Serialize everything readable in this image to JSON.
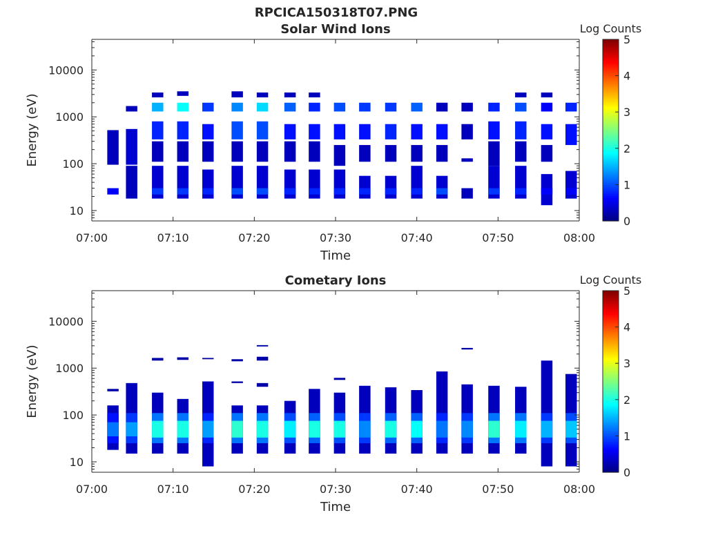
{
  "figure_title": "RPCICA150318T07.PNG",
  "colormap": [
    "#00007f",
    "#0000ff",
    "#007fff",
    "#00ffff",
    "#7fff7f",
    "#ffff00",
    "#ff7f00",
    "#ff0000",
    "#7f0000"
  ],
  "chart_data": [
    {
      "type": "heatmap",
      "title": "Solar Wind Ions",
      "xlabel": "Time",
      "ylabel": "Energy (eV)",
      "yscale": "log",
      "ylim": [
        6,
        45000
      ],
      "xlim": [
        "07:00",
        "08:00"
      ],
      "x_ticks": [
        "07:00",
        "07:10",
        "07:20",
        "07:30",
        "07:40",
        "07:50",
        "08:00"
      ],
      "y_ticks": [
        "10",
        "100",
        "1000",
        "10000"
      ],
      "y_tick_values": [
        10,
        100,
        1000,
        10000
      ],
      "colorbar": {
        "label": "Log Counts",
        "range": [
          0,
          5
        ],
        "ticks": [
          "0",
          "1",
          "2",
          "3",
          "4",
          "5"
        ]
      },
      "time_bins": [
        2.6,
        4.9,
        8.1,
        11.2,
        14.3,
        17.9,
        21.0,
        24.4,
        27.4,
        30.5,
        33.6,
        36.8,
        40.0,
        43.1,
        46.2,
        49.5,
        52.8,
        56.0,
        59.0
      ],
      "bin_width_min": 1.4,
      "cells": [
        {
          "t": 2.6,
          "ranges": [
            [
              22,
              30,
              0.6
            ],
            [
              95,
              520,
              0.3
            ]
          ]
        },
        {
          "t": 4.9,
          "ranges": [
            [
              18,
              90,
              0.3
            ],
            [
              95,
              550,
              0.4
            ],
            [
              1300,
              1700,
              0.3
            ]
          ]
        },
        {
          "t": 8.1,
          "ranges": [
            [
              18,
              90,
              0.4
            ],
            [
              22,
              30,
              0.9
            ],
            [
              110,
              300,
              0.3
            ],
            [
              330,
              800,
              0.8
            ],
            [
              1300,
              2000,
              1.5
            ],
            [
              2600,
              3300,
              0.3
            ]
          ]
        },
        {
          "t": 11.2,
          "ranges": [
            [
              18,
              90,
              0.4
            ],
            [
              22,
              30,
              0.9
            ],
            [
              110,
              300,
              0.3
            ],
            [
              330,
              800,
              0.8
            ],
            [
              1300,
              2000,
              1.9
            ],
            [
              2800,
              3500,
              0.3
            ]
          ]
        },
        {
          "t": 14.3,
          "ranges": [
            [
              18,
              75,
              0.4
            ],
            [
              22,
              30,
              0.8
            ],
            [
              110,
              300,
              0.3
            ],
            [
              330,
              700,
              0.7
            ],
            [
              1300,
              2000,
              0.9
            ]
          ]
        },
        {
          "t": 17.9,
          "ranges": [
            [
              18,
              90,
              0.4
            ],
            [
              22,
              30,
              1.0
            ],
            [
              110,
              300,
              0.3
            ],
            [
              330,
              800,
              1.0
            ],
            [
              1300,
              2000,
              1.3
            ],
            [
              2600,
              3500,
              0.3
            ]
          ]
        },
        {
          "t": 21.0,
          "ranges": [
            [
              18,
              90,
              0.4
            ],
            [
              22,
              30,
              1.0
            ],
            [
              110,
              300,
              0.3
            ],
            [
              330,
              800,
              1.0
            ],
            [
              1300,
              2000,
              1.7
            ],
            [
              2600,
              3300,
              0.3
            ]
          ]
        },
        {
          "t": 24.4,
          "ranges": [
            [
              18,
              75,
              0.4
            ],
            [
              22,
              30,
              0.8
            ],
            [
              110,
              300,
              0.3
            ],
            [
              330,
              700,
              0.7
            ],
            [
              1300,
              2000,
              1.1
            ],
            [
              2600,
              3300,
              0.3
            ]
          ]
        },
        {
          "t": 27.4,
          "ranges": [
            [
              18,
              75,
              0.4
            ],
            [
              22,
              30,
              0.8
            ],
            [
              110,
              300,
              0.3
            ],
            [
              330,
              700,
              0.7
            ],
            [
              1300,
              2000,
              0.8
            ],
            [
              2600,
              3300,
              0.3
            ]
          ]
        },
        {
          "t": 30.5,
          "ranges": [
            [
              18,
              75,
              0.4
            ],
            [
              22,
              30,
              0.8
            ],
            [
              90,
              250,
              0.3
            ],
            [
              330,
              700,
              0.7
            ],
            [
              1300,
              2000,
              1.0
            ]
          ]
        },
        {
          "t": 33.6,
          "ranges": [
            [
              18,
              55,
              0.4
            ],
            [
              22,
              30,
              0.8
            ],
            [
              110,
              250,
              0.3
            ],
            [
              330,
              700,
              0.7
            ],
            [
              1300,
              2000,
              0.9
            ]
          ]
        },
        {
          "t": 36.8,
          "ranges": [
            [
              18,
              55,
              0.4
            ],
            [
              22,
              30,
              0.8
            ],
            [
              110,
              250,
              0.3
            ],
            [
              330,
              700,
              0.8
            ],
            [
              1300,
              2000,
              0.9
            ]
          ]
        },
        {
          "t": 40.0,
          "ranges": [
            [
              18,
              90,
              0.4
            ],
            [
              22,
              30,
              0.8
            ],
            [
              110,
              250,
              0.3
            ],
            [
              330,
              700,
              0.7
            ],
            [
              1300,
              2000,
              1.1
            ]
          ]
        },
        {
          "t": 43.1,
          "ranges": [
            [
              18,
              55,
              0.4
            ],
            [
              22,
              30,
              1.0
            ],
            [
              110,
              250,
              0.3
            ],
            [
              330,
              700,
              0.7
            ],
            [
              1300,
              2000,
              0.3
            ]
          ]
        },
        {
          "t": 46.2,
          "ranges": [
            [
              18,
              30,
              0.3
            ],
            [
              110,
              130,
              0.3
            ],
            [
              330,
              700,
              0.3
            ],
            [
              1300,
              2000,
              0.3
            ]
          ]
        },
        {
          "t": 49.5,
          "ranges": [
            [
              18,
              90,
              0.4
            ],
            [
              22,
              30,
              0.9
            ],
            [
              90,
              300,
              0.3
            ],
            [
              330,
              800,
              0.7
            ],
            [
              1300,
              2000,
              0.8
            ]
          ]
        },
        {
          "t": 52.8,
          "ranges": [
            [
              18,
              90,
              0.4
            ],
            [
              22,
              30,
              0.8
            ],
            [
              110,
              300,
              0.3
            ],
            [
              330,
              800,
              0.8
            ],
            [
              1300,
              2000,
              1.0
            ],
            [
              2600,
              3300,
              0.3
            ]
          ]
        },
        {
          "t": 56.0,
          "ranges": [
            [
              13,
              60,
              0.4
            ],
            [
              22,
              30,
              0.6
            ],
            [
              110,
              250,
              0.3
            ],
            [
              330,
              700,
              0.7
            ],
            [
              1300,
              2000,
              0.6
            ],
            [
              2600,
              3300,
              0.3
            ]
          ]
        },
        {
          "t": 59.0,
          "ranges": [
            [
              18,
              70,
              0.4
            ],
            [
              22,
              30,
              0.6
            ],
            [
              250,
              700,
              0.7
            ],
            [
              1300,
              2000,
              0.8
            ]
          ]
        }
      ]
    },
    {
      "type": "heatmap",
      "title": "Cometary Ions",
      "xlabel": "Time",
      "ylabel": "Energy (eV)",
      "yscale": "log",
      "ylim": [
        6,
        45000
      ],
      "xlim": [
        "07:00",
        "08:00"
      ],
      "x_ticks": [
        "07:00",
        "07:10",
        "07:20",
        "07:30",
        "07:40",
        "07:50",
        "08:00"
      ],
      "y_ticks": [
        "10",
        "100",
        "1000",
        "10000"
      ],
      "y_tick_values": [
        10,
        100,
        1000,
        10000
      ],
      "colorbar": {
        "label": "Log Counts",
        "range": [
          0,
          5
        ],
        "ticks": [
          "0",
          "1",
          "2",
          "3",
          "4",
          "5"
        ]
      },
      "time_bins": [
        2.6,
        4.9,
        8.1,
        11.2,
        14.3,
        17.9,
        21.0,
        24.4,
        27.4,
        30.5,
        33.6,
        36.8,
        40.0,
        43.1,
        46.2,
        49.5,
        52.8,
        56.0,
        59.0
      ],
      "bin_width_min": 1.4,
      "cells": [
        {
          "t": 2.6,
          "ranges": [
            [
              18,
              160,
              0.3
            ],
            [
              25,
              110,
              0.7
            ],
            [
              35,
              70,
              1.2
            ],
            [
              320,
              360,
              0.2
            ]
          ]
        },
        {
          "t": 4.9,
          "ranges": [
            [
              15,
              480,
              0.3
            ],
            [
              25,
              110,
              0.9
            ],
            [
              35,
              70,
              1.4
            ]
          ]
        },
        {
          "t": 8.1,
          "ranges": [
            [
              15,
              300,
              0.3
            ],
            [
              25,
              110,
              1.2
            ],
            [
              33,
              75,
              2.0
            ],
            [
              1450,
              1650,
              0.2
            ]
          ]
        },
        {
          "t": 11.2,
          "ranges": [
            [
              15,
              220,
              0.3
            ],
            [
              25,
              110,
              1.2
            ],
            [
              33,
              75,
              2.0
            ],
            [
              1500,
              1700,
              0.2
            ]
          ]
        },
        {
          "t": 14.3,
          "ranges": [
            [
              8,
              520,
              0.3
            ],
            [
              25,
              110,
              0.8
            ],
            [
              33,
              75,
              1.4
            ],
            [
              1550,
              1650,
              0.2
            ]
          ]
        },
        {
          "t": 17.9,
          "ranges": [
            [
              15,
              160,
              0.3
            ],
            [
              25,
              110,
              1.2
            ],
            [
              33,
              75,
              2.1
            ],
            [
              480,
              520,
              0.2
            ],
            [
              1400,
              1550,
              0.2
            ]
          ]
        },
        {
          "t": 21.0,
          "ranges": [
            [
              15,
              160,
              0.3
            ],
            [
              25,
              110,
              1.2
            ],
            [
              33,
              75,
              2.0
            ],
            [
              400,
              480,
              0.2
            ],
            [
              1450,
              1750,
              0.2
            ],
            [
              2900,
              3100,
              0.2
            ]
          ]
        },
        {
          "t": 24.4,
          "ranges": [
            [
              15,
              200,
              0.3
            ],
            [
              25,
              110,
              1.0
            ],
            [
              33,
              75,
              1.8
            ]
          ]
        },
        {
          "t": 27.4,
          "ranges": [
            [
              15,
              360,
              0.3
            ],
            [
              25,
              110,
              1.1
            ],
            [
              33,
              75,
              2.0
            ]
          ]
        },
        {
          "t": 30.5,
          "ranges": [
            [
              15,
              300,
              0.3
            ],
            [
              25,
              110,
              1.0
            ],
            [
              33,
              75,
              2.0
            ],
            [
              560,
              620,
              0.2
            ]
          ]
        },
        {
          "t": 33.6,
          "ranges": [
            [
              15,
              420,
              0.3
            ],
            [
              25,
              110,
              0.9
            ],
            [
              33,
              75,
              1.3
            ]
          ]
        },
        {
          "t": 36.8,
          "ranges": [
            [
              15,
              390,
              0.3
            ],
            [
              25,
              110,
              1.1
            ],
            [
              33,
              75,
              2.0
            ]
          ]
        },
        {
          "t": 40.0,
          "ranges": [
            [
              15,
              340,
              0.3
            ],
            [
              25,
              110,
              1.1
            ],
            [
              33,
              75,
              1.9
            ]
          ]
        },
        {
          "t": 43.1,
          "ranges": [
            [
              15,
              850,
              0.3
            ],
            [
              25,
              110,
              0.8
            ],
            [
              33,
              75,
              1.2
            ]
          ]
        },
        {
          "t": 46.2,
          "ranges": [
            [
              15,
              450,
              0.3
            ],
            [
              25,
              110,
              0.9
            ],
            [
              33,
              75,
              1.3
            ],
            [
              2500,
              2700,
              0.2
            ]
          ]
        },
        {
          "t": 49.5,
          "ranges": [
            [
              15,
              420,
              0.3
            ],
            [
              25,
              110,
              1.2
            ],
            [
              33,
              75,
              2.1
            ]
          ]
        },
        {
          "t": 52.8,
          "ranges": [
            [
              15,
              400,
              0.3
            ],
            [
              25,
              110,
              1.2
            ],
            [
              33,
              75,
              1.8
            ]
          ]
        },
        {
          "t": 56.0,
          "ranges": [
            [
              8,
              1450,
              0.3
            ],
            [
              25,
              110,
              0.9
            ],
            [
              33,
              75,
              1.5
            ]
          ]
        },
        {
          "t": 59.0,
          "ranges": [
            [
              8,
              750,
              0.3
            ],
            [
              25,
              110,
              1.0
            ],
            [
              33,
              75,
              1.6
            ]
          ]
        }
      ]
    }
  ]
}
